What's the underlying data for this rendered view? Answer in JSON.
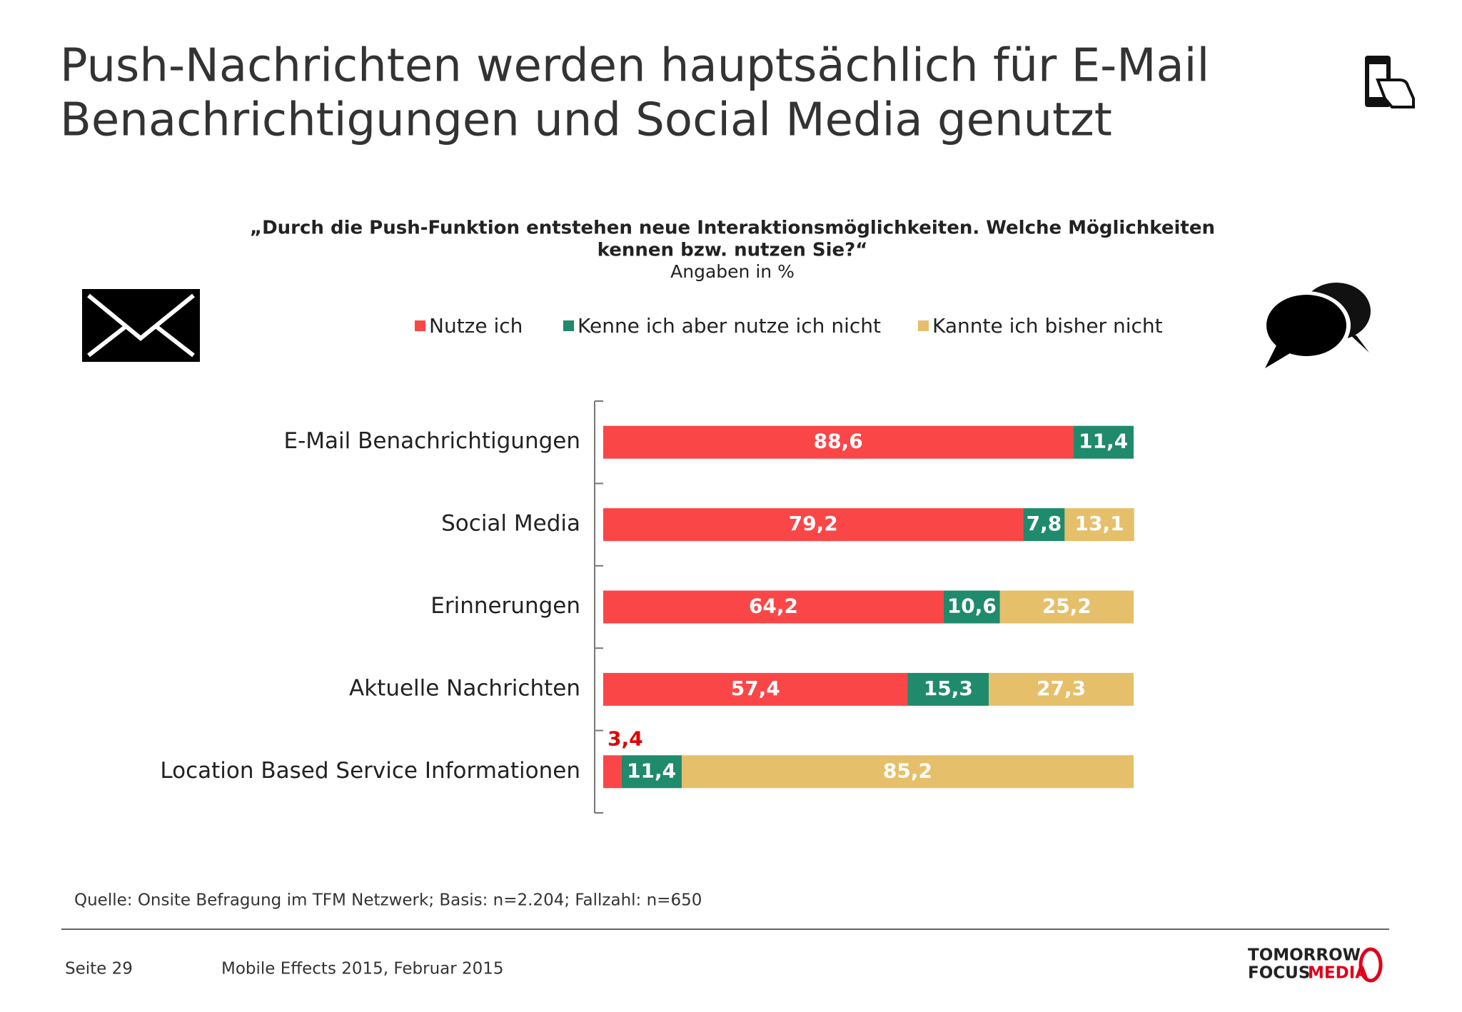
{
  "header": {
    "title_lines": [
      "Push-Nachrichten werden hauptsächlich für E-Mail",
      "Benachrichtigungen und Social Media genutzt"
    ]
  },
  "chart_data": {
    "type": "bar",
    "orientation": "horizontal",
    "stacked": true,
    "title": [
      "„Durch die Push-Funktion entstehen neue Interaktionsmöglichkeiten. Welche Möglichkeiten",
      "kennen bzw. nutzen Sie?“"
    ],
    "subtitle": "Angaben in %",
    "categories": [
      "E-Mail Benachrichtigungen",
      "Social Media",
      "Erinnerungen",
      "Aktuelle Nachrichten",
      "Location Based Service Informationen"
    ],
    "series": [
      {
        "name": "Nutze ich",
        "color": "#fb4648",
        "values": [
          88.6,
          79.2,
          64.2,
          57.4,
          3.4
        ],
        "value_labels": [
          "88,6",
          "79,2",
          "64,2",
          "57,4",
          "3,4"
        ]
      },
      {
        "name": "Kenne ich aber nutze ich nicht",
        "color": "#208a6c",
        "values": [
          11.4,
          7.8,
          10.6,
          15.3,
          11.4
        ],
        "value_labels": [
          "11,4",
          "7,8",
          "10,6",
          "15,3",
          "11,4"
        ]
      },
      {
        "name": "Kannte ich bisher nicht",
        "color": "#e5bf6a",
        "values": [
          null,
          13.1,
          25.2,
          27.3,
          85.2
        ],
        "value_labels": [
          null,
          "13,1",
          "25,2",
          "27,3",
          "85,2"
        ]
      }
    ],
    "xlim": [
      0,
      100
    ],
    "legend": "top"
  },
  "footer": {
    "source": "Quelle: Onsite Befragung im TFM Netzwerk; Basis: n=2.204; Fallzahl:  n=650",
    "page": "Seite 29",
    "report": "Mobile Effects 2015, Februar 2015",
    "logo_line1": "TOMORROW",
    "logo_line2a": "FOCUS",
    "logo_line2b": "MEDIA"
  }
}
